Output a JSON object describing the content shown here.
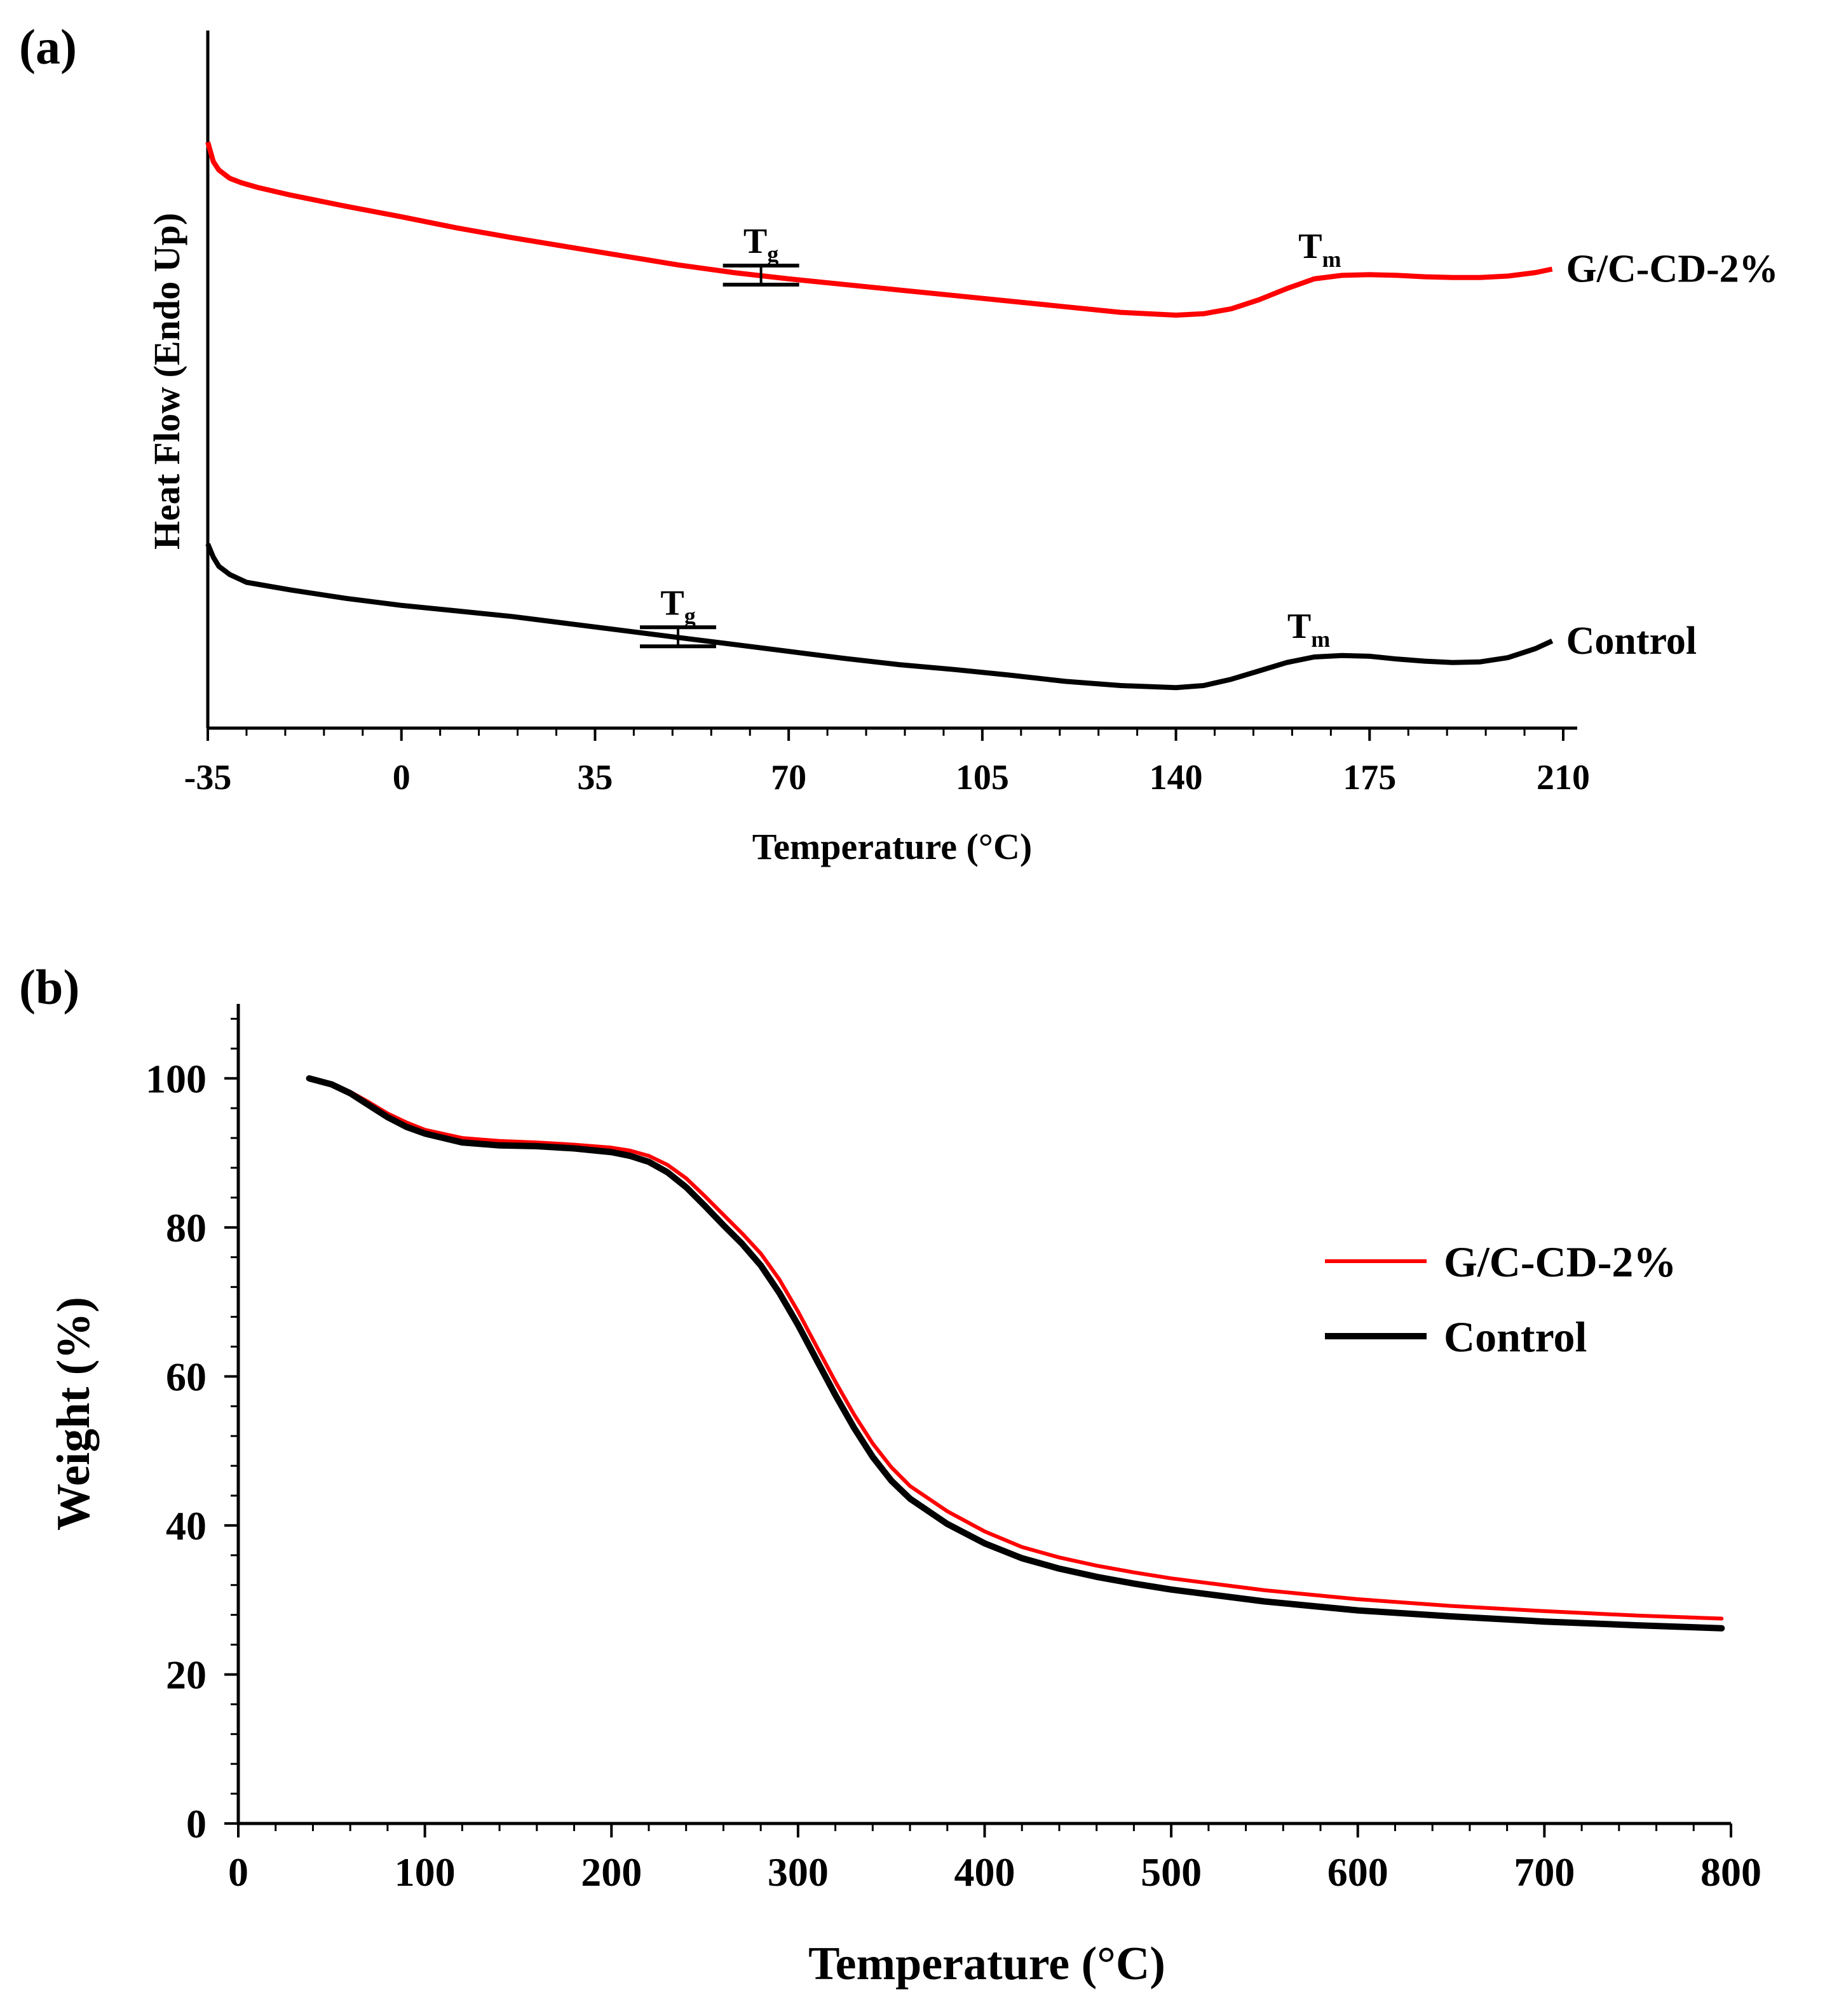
{
  "chart_data": [
    {
      "panel_label": "(a)",
      "type": "line",
      "title": "",
      "xlabel": "Temperature (°C)",
      "ylabel": "Heat Flow (Endo Up)",
      "xlim": [
        -35,
        210
      ],
      "ylim": [
        0,
        1
      ],
      "x_ticks": [
        -35,
        0,
        35,
        70,
        105,
        140,
        175,
        210
      ],
      "x_tick_labels": [
        "-35",
        "0",
        "35",
        "70",
        "105",
        "140",
        "175",
        "210"
      ],
      "grid": false,
      "series": [
        {
          "name": "G/C-CD-2%",
          "label": "G/C-CD-2%",
          "color": "#ff0000",
          "x": [
            -35,
            -34,
            -33,
            -31,
            -29,
            -26,
            -20,
            -10,
            0,
            10,
            20,
            30,
            40,
            50,
            60,
            70,
            80,
            90,
            100,
            110,
            120,
            130,
            140,
            145,
            150,
            155,
            160,
            165,
            170,
            175,
            180,
            185,
            190,
            195,
            200,
            205,
            208
          ],
          "y": [
            0.84,
            0.812,
            0.8,
            0.788,
            0.782,
            0.775,
            0.764,
            0.748,
            0.733,
            0.717,
            0.703,
            0.69,
            0.677,
            0.664,
            0.653,
            0.644,
            0.636,
            0.628,
            0.62,
            0.612,
            0.604,
            0.596,
            0.592,
            0.594,
            0.601,
            0.614,
            0.63,
            0.644,
            0.649,
            0.65,
            0.649,
            0.647,
            0.646,
            0.646,
            0.648,
            0.653,
            0.658
          ],
          "annotations": [
            {
              "text": "T",
              "sub": "g",
              "x": 65
            },
            {
              "text": "T",
              "sub": "m",
              "x": 166
            }
          ]
        },
        {
          "name": "Control",
          "label": "Control",
          "color": "#000000",
          "x": [
            -35,
            -34,
            -33,
            -31,
            -28,
            -20,
            -10,
            0,
            10,
            20,
            30,
            40,
            50,
            60,
            70,
            80,
            90,
            100,
            110,
            120,
            130,
            140,
            145,
            150,
            155,
            160,
            165,
            170,
            175,
            180,
            185,
            190,
            195,
            200,
            205,
            208
          ],
          "y": [
            0.264,
            0.245,
            0.232,
            0.22,
            0.209,
            0.198,
            0.186,
            0.176,
            0.168,
            0.16,
            0.15,
            0.14,
            0.13,
            0.12,
            0.11,
            0.1,
            0.091,
            0.084,
            0.076,
            0.067,
            0.061,
            0.058,
            0.061,
            0.07,
            0.082,
            0.094,
            0.102,
            0.104,
            0.103,
            0.099,
            0.096,
            0.094,
            0.095,
            0.101,
            0.114,
            0.125
          ],
          "annotations": [
            {
              "text": "T",
              "sub": "g",
              "x": 50
            },
            {
              "text": "T",
              "sub": "m",
              "x": 164
            }
          ]
        }
      ]
    },
    {
      "panel_label": "(b)",
      "type": "line",
      "title": "",
      "xlabel": "Temperature (°C)",
      "ylabel": "Weight (%)",
      "xlim": [
        0,
        800
      ],
      "ylim": [
        0,
        110
      ],
      "x_ticks": [
        0,
        100,
        200,
        300,
        400,
        500,
        600,
        700,
        800
      ],
      "x_tick_labels": [
        "0",
        "100",
        "200",
        "300",
        "400",
        "500",
        "600",
        "700",
        "800"
      ],
      "y_ticks": [
        0,
        20,
        40,
        60,
        80,
        100
      ],
      "y_tick_labels": [
        "0",
        "20",
        "40",
        "60",
        "80",
        "100"
      ],
      "grid": false,
      "legend_position": "upper-right",
      "series": [
        {
          "name": "G/C-CD-2%",
          "label": "G/C-CD-2%",
          "color": "#ff0000",
          "x": [
            38,
            50,
            60,
            70,
            80,
            90,
            100,
            120,
            140,
            160,
            180,
            200,
            210,
            220,
            230,
            240,
            250,
            260,
            270,
            280,
            290,
            300,
            310,
            320,
            330,
            340,
            350,
            360,
            380,
            400,
            420,
            440,
            460,
            480,
            500,
            550,
            600,
            650,
            700,
            750,
            795
          ],
          "y": [
            100,
            99.3,
            98.2,
            96.8,
            95.3,
            94.1,
            93.1,
            92.0,
            91.6,
            91.4,
            91.1,
            90.7,
            90.3,
            89.6,
            88.4,
            86.6,
            84.2,
            81.7,
            79.2,
            76.5,
            73.0,
            68.7,
            64.0,
            59.3,
            54.9,
            51.0,
            47.8,
            45.3,
            41.9,
            39.2,
            37.1,
            35.7,
            34.6,
            33.7,
            32.9,
            31.3,
            30.1,
            29.2,
            28.5,
            27.9,
            27.5
          ]
        },
        {
          "name": "Control",
          "label": "Control",
          "color": "#000000",
          "x": [
            38,
            50,
            60,
            70,
            80,
            90,
            100,
            120,
            140,
            160,
            180,
            200,
            210,
            220,
            230,
            240,
            250,
            260,
            270,
            280,
            290,
            300,
            310,
            320,
            330,
            340,
            350,
            360,
            380,
            400,
            420,
            440,
            460,
            480,
            500,
            550,
            600,
            650,
            700,
            750,
            795
          ],
          "y": [
            100,
            99.2,
            98.0,
            96.4,
            94.8,
            93.5,
            92.6,
            91.4,
            91.0,
            90.9,
            90.6,
            90.1,
            89.6,
            88.8,
            87.4,
            85.4,
            82.9,
            80.3,
            77.8,
            74.9,
            71.2,
            66.9,
            62.2,
            57.5,
            53.1,
            49.2,
            46.0,
            43.6,
            40.2,
            37.6,
            35.6,
            34.2,
            33.1,
            32.2,
            31.4,
            29.8,
            28.6,
            27.8,
            27.1,
            26.6,
            26.2
          ]
        }
      ]
    }
  ]
}
